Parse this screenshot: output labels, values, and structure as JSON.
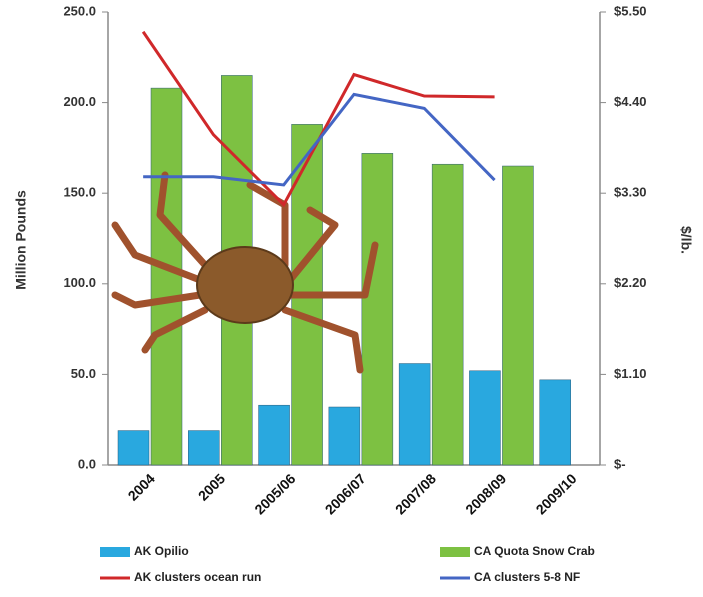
{
  "chart_data": {
    "type": "bar",
    "y_label": "Million Pounds",
    "y2_label": "$/lb.",
    "categories": [
      "2004",
      "2005",
      "2005/06",
      "2006/07",
      "2007/08",
      "2008/09",
      "2009/10"
    ],
    "ylim": [
      0,
      250
    ],
    "yticks": [
      {
        "value": 0,
        "label": "0.0"
      },
      {
        "value": 50,
        "label": "50.0"
      },
      {
        "value": 100,
        "label": "100.0"
      },
      {
        "value": 150,
        "label": "150.0"
      },
      {
        "value": 200,
        "label": "200.0"
      },
      {
        "value": 250,
        "label": "250.0"
      }
    ],
    "y2lim": [
      0,
      5.5
    ],
    "y2ticks": [
      {
        "value": 0,
        "label": "$-"
      },
      {
        "value": 1.1,
        "label": "$1.10"
      },
      {
        "value": 2.2,
        "label": "$2.20"
      },
      {
        "value": 3.3,
        "label": "$3.30"
      },
      {
        "value": 4.4,
        "label": "$4.40"
      },
      {
        "value": 5.5,
        "label": "$5.50"
      }
    ],
    "series": [
      {
        "name": "AK Opilio",
        "type": "bar",
        "color": "#29a8df",
        "values": [
          19,
          19,
          33,
          32,
          56,
          52,
          47
        ]
      },
      {
        "name": "CA Quota Snow Crab",
        "type": "bar",
        "color": "#7dc142",
        "values": [
          208,
          215,
          188,
          172,
          166,
          165,
          null
        ]
      },
      {
        "name": "AK clusters ocean run",
        "type": "line",
        "axis": "y2",
        "color": "#d0282a",
        "values": [
          5.26,
          4.01,
          3.16,
          4.74,
          4.48,
          4.47,
          null
        ]
      },
      {
        "name": "CA clusters 5-8 NF",
        "type": "line",
        "axis": "y2",
        "color": "#4466c4",
        "values": [
          3.5,
          3.5,
          3.4,
          4.5,
          4.33,
          3.46,
          null
        ]
      }
    ]
  }
}
